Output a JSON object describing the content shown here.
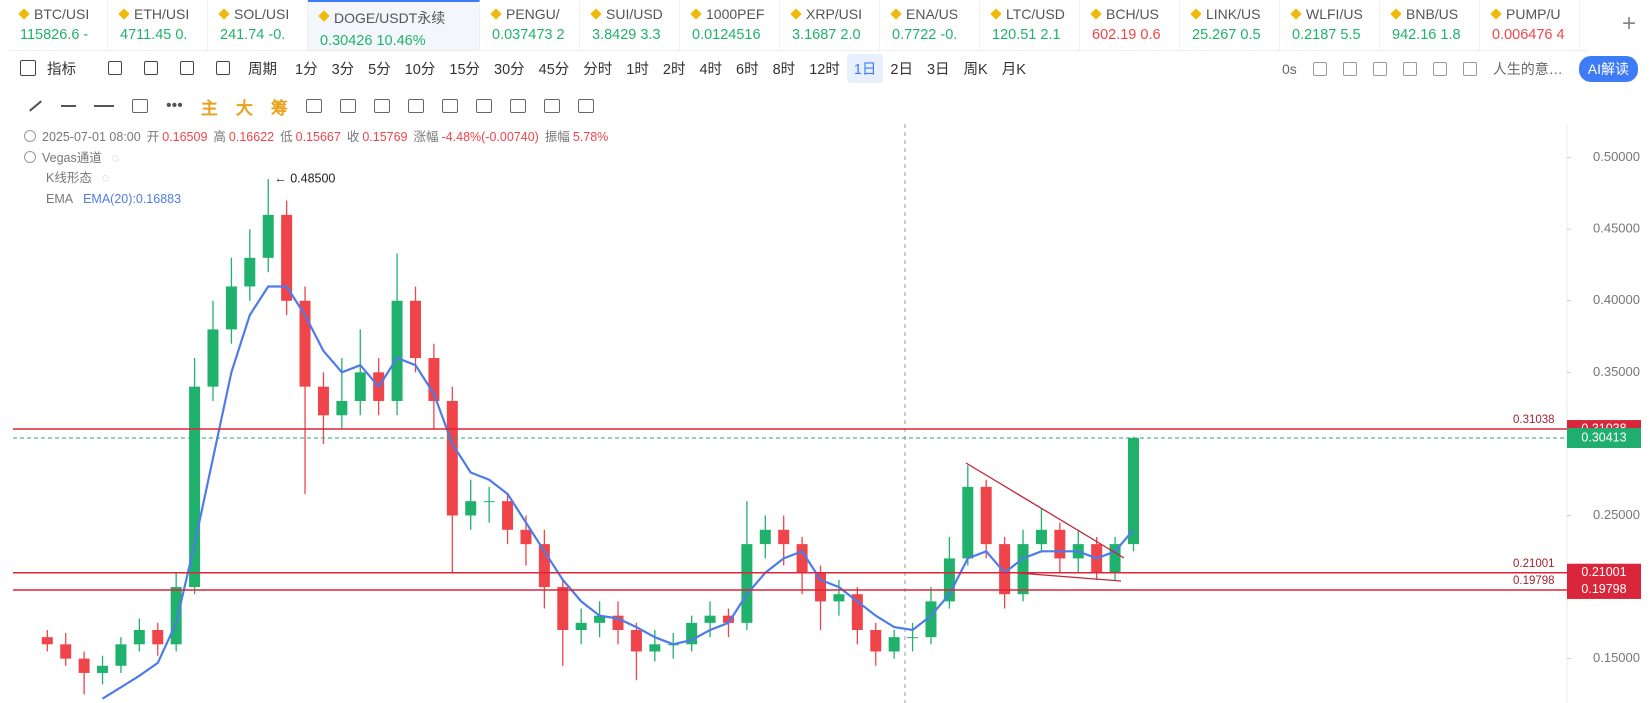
{
  "tickers": [
    {
      "name": "BTC/USI",
      "quote": "115826.6 -",
      "color": "#20b26c"
    },
    {
      "name": "ETH/USI",
      "quote": "4711.45 0.",
      "color": "#20b26c"
    },
    {
      "name": "SOL/USI",
      "quote": "241.74 -0.",
      "color": "#20b26c"
    },
    {
      "name": "DOGE/USDT永续",
      "quote": "0.30426 10.46%",
      "color": "#20b26c",
      "active": true
    },
    {
      "name": "PENGU/",
      "quote": "0.037473 2",
      "color": "#20b26c"
    },
    {
      "name": "SUI/USD",
      "quote": "3.8429 3.3",
      "color": "#20b26c"
    },
    {
      "name": "1000PEF",
      "quote": "0.0124516",
      "color": "#20b26c"
    },
    {
      "name": "XRP/USI",
      "quote": "3.1687 2.0",
      "color": "#20b26c"
    },
    {
      "name": "ENA/US",
      "quote": "0.7722 -0.",
      "color": "#20b26c"
    },
    {
      "name": "LTC/USD",
      "quote": "120.51 2.1",
      "color": "#20b26c"
    },
    {
      "name": "BCH/US",
      "quote": "602.19 0.6",
      "color": "#ef454a"
    },
    {
      "name": "LINK/US",
      "quote": "25.267 0.5",
      "color": "#20b26c"
    },
    {
      "name": "WLFI/US",
      "quote": "0.2187 5.5",
      "color": "#20b26c"
    },
    {
      "name": "BNB/US",
      "quote": "942.16 1.8",
      "color": "#20b26c"
    },
    {
      "name": "PUMP/U",
      "quote": "0.006476 4",
      "color": "#ef454a"
    }
  ],
  "toolbar": {
    "indicator": "指标",
    "period": "周期",
    "intervals": [
      "1分",
      "3分",
      "5分",
      "10分",
      "15分",
      "30分",
      "45分",
      "分时",
      "1时",
      "2时",
      "4时",
      "6时",
      "8时",
      "12时",
      "1日",
      "2日",
      "3日",
      "周K",
      "月K"
    ],
    "active_interval": "1日",
    "countdown": "0s",
    "account": "人生的意…",
    "ai": "AI解读"
  },
  "drawing_tools": [
    "主",
    "大",
    "筹"
  ],
  "chart_data": {
    "type": "candlestick",
    "info_date": "2025-07-01 08:00",
    "info": [
      {
        "label": "开",
        "value": "0.16509"
      },
      {
        "label": "高",
        "value": "0.16622"
      },
      {
        "label": "低",
        "value": "0.15667"
      },
      {
        "label": "收",
        "value": "0.15769"
      },
      {
        "label": "涨幅",
        "value": "-4.48%(-0.00740)"
      },
      {
        "label": "振幅",
        "value": "5.78%"
      }
    ],
    "indicators": [
      "Vegas通道",
      "K线形态"
    ],
    "ema_name": "EMA",
    "ema_label": "EMA(20):0.16883",
    "ema_color": "#4f7be8",
    "up_color": "#20b26c",
    "down_color": "#ef454a",
    "open": [
      0.165,
      0.16,
      0.15,
      0.14,
      0.145,
      0.16,
      0.17,
      0.16,
      0.2,
      0.34,
      0.38,
      0.41,
      0.43,
      0.46,
      0.4,
      0.34,
      0.32,
      0.33,
      0.35,
      0.33,
      0.4,
      0.36,
      0.33,
      0.25,
      0.26,
      0.26,
      0.24,
      0.23,
      0.2,
      0.17,
      0.175,
      0.18,
      0.17,
      0.155,
      0.16,
      0.16,
      0.175,
      0.18,
      0.175,
      0.23,
      0.24,
      0.23,
      0.21,
      0.19,
      0.195,
      0.17,
      0.155,
      0.165,
      0.165,
      0.19,
      0.22,
      0.27,
      0.23,
      0.195,
      0.23,
      0.24,
      0.22,
      0.23,
      0.21,
      0.23
    ],
    "high": [
      0.17,
      0.168,
      0.155,
      0.152,
      0.165,
      0.178,
      0.175,
      0.21,
      0.36,
      0.4,
      0.43,
      0.45,
      0.485,
      0.47,
      0.41,
      0.35,
      0.36,
      0.38,
      0.36,
      0.433,
      0.41,
      0.37,
      0.34,
      0.275,
      0.27,
      0.265,
      0.25,
      0.24,
      0.205,
      0.185,
      0.19,
      0.19,
      0.175,
      0.17,
      0.168,
      0.18,
      0.19,
      0.185,
      0.26,
      0.25,
      0.25,
      0.235,
      0.215,
      0.205,
      0.2,
      0.175,
      0.17,
      0.175,
      0.2,
      0.235,
      0.285,
      0.275,
      0.235,
      0.24,
      0.255,
      0.245,
      0.24,
      0.235,
      0.235,
      0.305
    ],
    "low": [
      0.155,
      0.145,
      0.125,
      0.132,
      0.14,
      0.155,
      0.152,
      0.155,
      0.195,
      0.33,
      0.37,
      0.4,
      0.42,
      0.39,
      0.265,
      0.3,
      0.31,
      0.32,
      0.32,
      0.32,
      0.35,
      0.31,
      0.21,
      0.24,
      0.245,
      0.23,
      0.215,
      0.185,
      0.145,
      0.16,
      0.165,
      0.16,
      0.135,
      0.148,
      0.15,
      0.155,
      0.165,
      0.165,
      0.17,
      0.22,
      0.215,
      0.195,
      0.17,
      0.18,
      0.16,
      0.145,
      0.15,
      0.155,
      0.16,
      0.185,
      0.215,
      0.22,
      0.185,
      0.19,
      0.225,
      0.21,
      0.21,
      0.205,
      0.205,
      0.225
    ],
    "close": [
      0.16,
      0.15,
      0.14,
      0.145,
      0.16,
      0.17,
      0.16,
      0.2,
      0.34,
      0.38,
      0.41,
      0.43,
      0.46,
      0.4,
      0.34,
      0.32,
      0.33,
      0.35,
      0.33,
      0.4,
      0.36,
      0.33,
      0.25,
      0.26,
      0.26,
      0.24,
      0.23,
      0.2,
      0.17,
      0.175,
      0.18,
      0.17,
      0.155,
      0.16,
      0.16,
      0.175,
      0.18,
      0.175,
      0.23,
      0.24,
      0.23,
      0.21,
      0.19,
      0.195,
      0.17,
      0.155,
      0.165,
      0.165,
      0.19,
      0.22,
      0.27,
      0.23,
      0.195,
      0.23,
      0.24,
      0.22,
      0.23,
      0.21,
      0.23,
      0.30413
    ],
    "ema": [
      null,
      null,
      null,
      0.122,
      0.13,
      0.138,
      0.147,
      0.175,
      0.23,
      0.29,
      0.35,
      0.39,
      0.41,
      0.41,
      0.39,
      0.365,
      0.35,
      0.355,
      0.34,
      0.36,
      0.355,
      0.335,
      0.3,
      0.28,
      0.275,
      0.265,
      0.245,
      0.225,
      0.205,
      0.19,
      0.18,
      0.178,
      0.172,
      0.165,
      0.16,
      0.163,
      0.17,
      0.175,
      0.195,
      0.21,
      0.22,
      0.225,
      0.205,
      0.2,
      0.19,
      0.18,
      0.172,
      0.17,
      0.18,
      0.195,
      0.22,
      0.225,
      0.21,
      0.22,
      0.225,
      0.225,
      0.225,
      0.22,
      0.225,
      0.24
    ],
    "peak_label": "← 0.48500",
    "ylim": [
      0.119,
      0.5235
    ],
    "yticks": [
      {
        "value": 0.15,
        "label": "0.15000"
      },
      {
        "value": 0.2,
        "label": "0.20000"
      },
      {
        "value": 0.25,
        "label": "0.25000"
      },
      {
        "value": 0.3,
        "label": "0.30000"
      },
      {
        "value": 0.35,
        "label": "0.35000"
      },
      {
        "value": 0.4,
        "label": "0.40000"
      },
      {
        "value": 0.45,
        "label": "0.45000"
      },
      {
        "value": 0.5,
        "label": "0.50000"
      }
    ],
    "levels": [
      0.31038,
      0.21001,
      0.19798
    ],
    "level_color": "#d9263b",
    "last_price": 0.30413,
    "last_color": "#1fae6f"
  }
}
